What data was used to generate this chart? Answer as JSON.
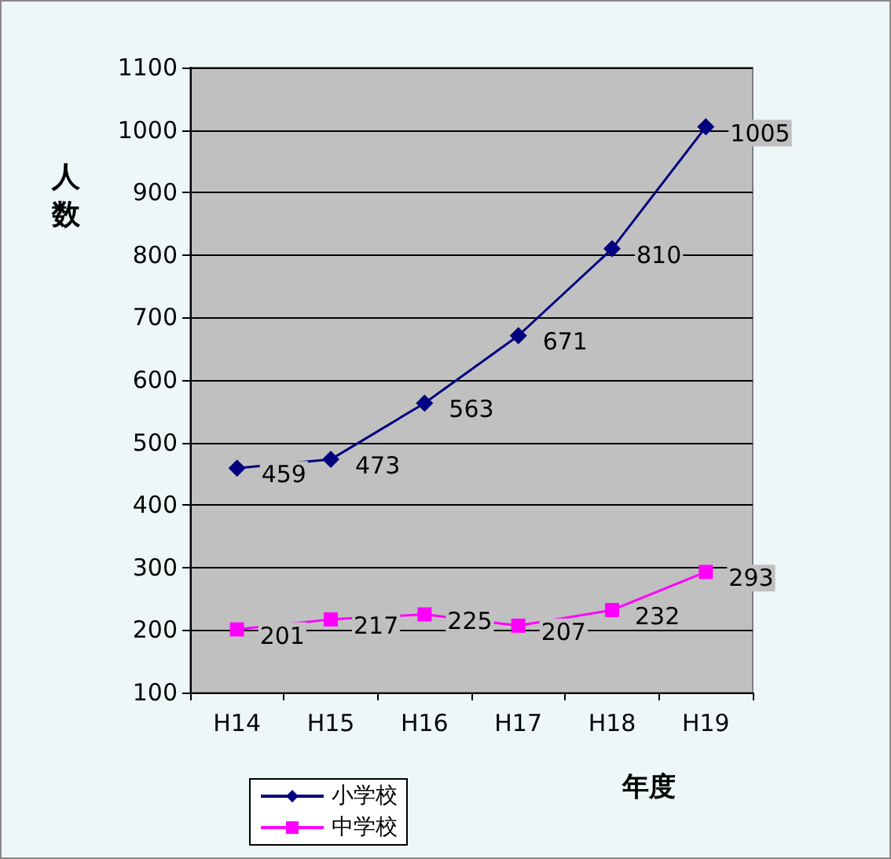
{
  "chart_data": {
    "type": "line",
    "ylabel": "人数",
    "xlabel": "年度",
    "categories": [
      "H14",
      "H15",
      "H16",
      "H17",
      "H18",
      "H19"
    ],
    "series": [
      {
        "name": "小学校",
        "color": "#000080",
        "marker": "diamond",
        "values": [
          459,
          473,
          563,
          671,
          810,
          1005
        ]
      },
      {
        "name": "中学校",
        "color": "#ff00ff",
        "marker": "square",
        "values": [
          201,
          217,
          225,
          207,
          232,
          293
        ]
      }
    ],
    "ylim": [
      100,
      1100
    ],
    "yticks": [
      100,
      200,
      300,
      400,
      500,
      600,
      700,
      800,
      900,
      1000,
      1100
    ],
    "grid": "y",
    "legend": "bottom left",
    "data_labels": true
  }
}
